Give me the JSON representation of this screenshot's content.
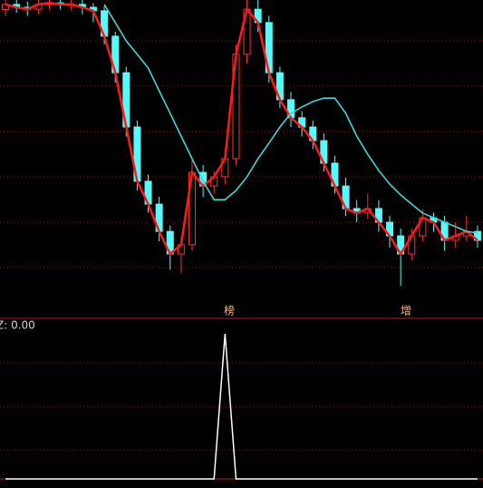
{
  "chart_data": [
    {
      "type": "candlestick",
      "categories": [
        null,
        null,
        null,
        null,
        null,
        null,
        null,
        null,
        null,
        null,
        null,
        null,
        null,
        null,
        null,
        null,
        null,
        null,
        null,
        null,
        null,
        null,
        null,
        null,
        null,
        null,
        null,
        null,
        null,
        null,
        null,
        null,
        null,
        null,
        null,
        null,
        null,
        null,
        null,
        null,
        null,
        null,
        null,
        null
      ],
      "open": [
        97,
        98.6,
        97.7,
        97.1,
        98.6,
        99.1,
        98.6,
        98.6,
        97.7,
        96.6,
        88.6,
        77.1,
        60,
        42.9,
        35.7,
        27.1,
        20,
        22.9,
        45.7,
        41.4,
        44.3,
        50,
        82.9,
        97.1,
        92.9,
        77.1,
        68.6,
        62.9,
        60,
        55.7,
        48.6,
        41.4,
        34.3,
        32.9,
        34.3,
        30,
        25.7,
        20,
        25.7,
        31.4,
        30,
        24.3,
        25.7,
        27.1
      ],
      "close": [
        98.6,
        97.7,
        97.1,
        98.6,
        99.1,
        98.6,
        98.6,
        97.7,
        96.6,
        88.6,
        77.1,
        60,
        42.9,
        35.7,
        27.1,
        20,
        22.9,
        45.7,
        41.4,
        44.3,
        50,
        82.9,
        97.1,
        92.9,
        77.1,
        68.6,
        62.9,
        60,
        55.7,
        48.6,
        41.4,
        34.3,
        32.9,
        34.3,
        30,
        25.7,
        20,
        25.7,
        31.4,
        30,
        24.3,
        25.7,
        27.1,
        24.3
      ],
      "high": [
        100,
        100,
        99.5,
        100,
        100,
        100,
        100,
        100,
        99,
        98,
        90,
        79,
        62,
        45,
        38,
        29,
        25,
        50,
        48,
        46,
        53,
        86,
        100,
        100,
        95,
        79,
        71,
        65,
        62,
        58,
        51,
        44,
        37,
        39,
        37,
        32,
        28,
        28,
        34,
        33,
        32,
        30,
        32,
        29
      ],
      "low": [
        95,
        96,
        95,
        95.5,
        97,
        97,
        96.5,
        95.5,
        93,
        86,
        74,
        57,
        40,
        33,
        24,
        15,
        14,
        21,
        38,
        39,
        42,
        48,
        80,
        90,
        74,
        66,
        60,
        57,
        53,
        46,
        39,
        32,
        30,
        31,
        27,
        22,
        10,
        18,
        24,
        27,
        21,
        22,
        24,
        22
      ],
      "up_color": "#ff3232",
      "down_color": "#54fcfc",
      "series": [
        {
          "color": "#ff1a1a",
          "values": [
            98.6,
            97.7,
            97.1,
            98.6,
            99.1,
            98.6,
            98.6,
            97.7,
            96.6,
            88.6,
            77.1,
            60,
            42.9,
            35.7,
            27.1,
            20,
            22.9,
            45.7,
            41.4,
            44.3,
            50,
            82.9,
            97.1,
            92.9,
            77.1,
            68.6,
            62.9,
            60,
            55.7,
            48.6,
            41.4,
            34.3,
            32.9,
            34.3,
            30,
            25.7,
            20,
            25.7,
            31.4,
            30,
            24.3,
            25.7,
            27.1,
            24.3
          ]
        },
        {
          "color": "#3ed6d6",
          "values": [
            null,
            null,
            null,
            null,
            null,
            null,
            null,
            null,
            null,
            98.6,
            92.9,
            87.1,
            82.9,
            78.6,
            71.4,
            64.3,
            57.1,
            50,
            42.9,
            37.1,
            37.1,
            40,
            44.3,
            50,
            54.9,
            60,
            64.3,
            66.3,
            68,
            69.1,
            69.1,
            64.3,
            57.1,
            51.4,
            46.3,
            42,
            38.6,
            35.7,
            32.9,
            31.4,
            30,
            28.6,
            27.1,
            26.6
          ]
        }
      ],
      "annotations": [
        "榜",
        "增"
      ],
      "ylim": [
        0,
        100
      ],
      "yticks": [
        87.1,
        72.9,
        58.6,
        44.3,
        30,
        15.7
      ],
      "grid": true
    },
    {
      "type": "line",
      "title": "Z: 0.00",
      "categories": [
        null,
        null,
        null,
        null,
        null,
        null,
        null,
        null,
        null,
        null,
        null,
        null,
        null,
        null,
        null,
        null,
        null,
        null,
        null,
        null,
        null,
        null,
        null,
        null,
        null,
        null,
        null,
        null,
        null,
        null,
        null,
        null,
        null,
        null,
        null,
        null,
        null,
        null,
        null,
        null,
        null,
        null,
        null,
        null
      ],
      "series": [
        {
          "color": "#ffffff",
          "values": [
            0,
            0,
            0,
            0,
            0,
            0,
            0,
            0,
            0,
            0,
            0,
            0,
            0,
            0,
            0,
            0,
            0,
            0,
            0,
            0,
            1,
            0,
            0,
            0,
            0,
            0,
            0,
            0,
            0,
            0,
            0,
            0,
            0,
            0,
            0,
            0,
            0,
            0,
            0,
            0,
            0,
            0,
            0,
            0
          ]
        }
      ],
      "ylim": [
        0,
        1.1
      ],
      "yticks": [
        0.2,
        0.5,
        0.8
      ],
      "grid": true
    }
  ]
}
